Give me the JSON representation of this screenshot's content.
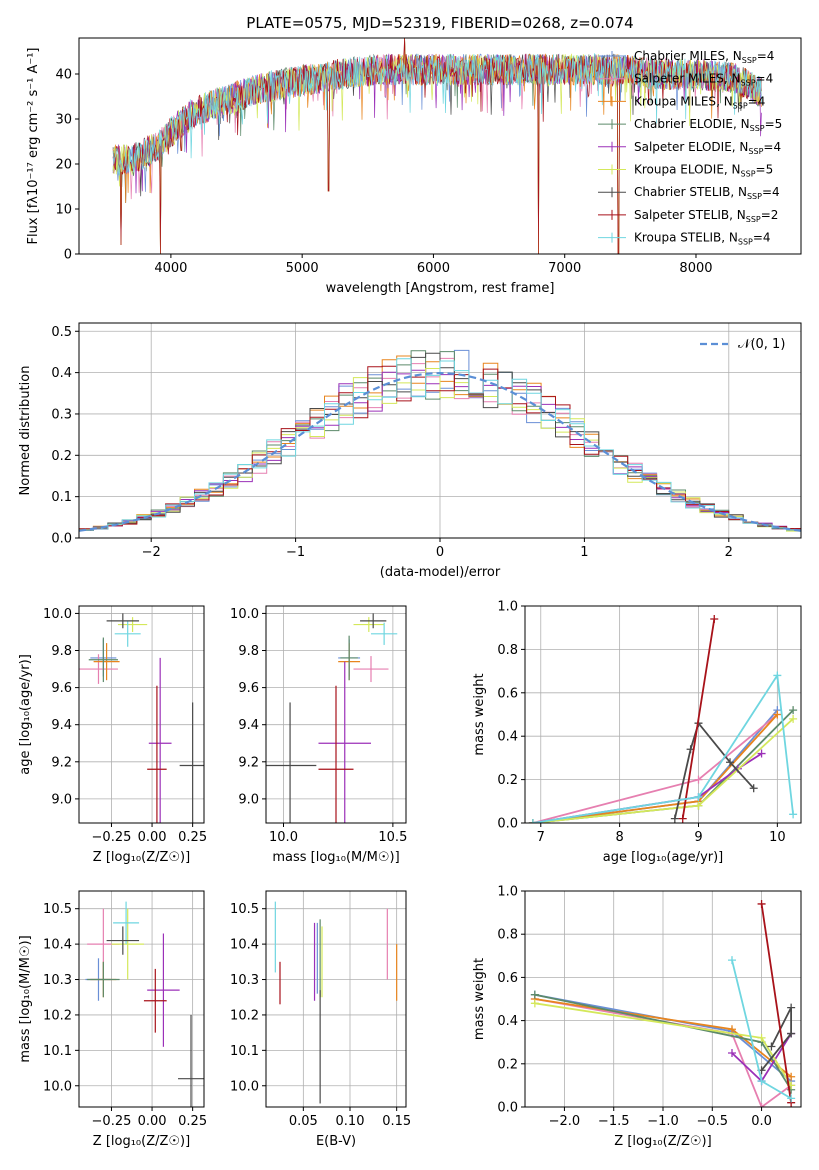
{
  "figure": {
    "title": "PLATE=0575, MJD=52319, FIBERID=0268, z=0.074"
  },
  "models": [
    {
      "name": "Chabrier MILES",
      "nssp": "4",
      "color": "#6a8fd6"
    },
    {
      "name": "Salpeter MILES",
      "nssp": "4",
      "color": "#e67fb0"
    },
    {
      "name": "Kroupa MILES",
      "nssp": "4",
      "color": "#e8851e"
    },
    {
      "name": "Chabrier ELODIE",
      "nssp": "5",
      "color": "#5c8a6a"
    },
    {
      "name": "Salpeter ELODIE",
      "nssp": "4",
      "color": "#9b30b8"
    },
    {
      "name": "Kroupa ELODIE",
      "nssp": "5",
      "color": "#d4e85a"
    },
    {
      "name": "Chabrier STELIB",
      "nssp": "4",
      "color": "#4a4a4a"
    },
    {
      "name": "Salpeter STELIB",
      "nssp": "2",
      "color": "#a8121a"
    },
    {
      "name": "Kroupa STELIB",
      "nssp": "4",
      "color": "#6fd6e0"
    }
  ],
  "chart_data": [
    {
      "id": "spectrum",
      "type": "line",
      "xlabel": "wavelength [Angstrom, rest frame]",
      "ylabel": "Flux [fλ10⁻¹⁷ erg cm⁻² s⁻¹ A⁻¹]",
      "xlim": [
        3300,
        8800
      ],
      "ylim": [
        0,
        48
      ],
      "xticks": [
        "4000",
        "5000",
        "6000",
        "7000",
        "8000"
      ],
      "yticks": [
        "0",
        "10",
        "20",
        "30",
        "40"
      ],
      "legend_position": "right",
      "continuum": {
        "x": [
          3560,
          3700,
          3900,
          4000,
          4150,
          4300,
          4500,
          4700,
          4900,
          5100,
          5300,
          5600,
          5900,
          6200,
          6500,
          6800,
          7100,
          7400,
          7700,
          8000,
          8300,
          8500
        ],
        "y": [
          21,
          21,
          24,
          27,
          31,
          33,
          35,
          37,
          38,
          39,
          40,
          41,
          41,
          41,
          41,
          41,
          41,
          41,
          40,
          40,
          39,
          36
        ]
      },
      "spikes": [
        {
          "x": 3620,
          "y": 2
        },
        {
          "x": 3920,
          "y": 0
        },
        {
          "x": 4080,
          "y": 23
        },
        {
          "x": 5200,
          "y": 14
        },
        {
          "x": 5780,
          "y": 48
        },
        {
          "x": 6800,
          "y": 0
        },
        {
          "x": 7410,
          "y": 0
        }
      ]
    },
    {
      "id": "residuals",
      "type": "histogram",
      "xlabel": "(data-model)/error",
      "ylabel": "Normed distribution",
      "xlim": [
        -2.5,
        2.5
      ],
      "ylim": [
        0,
        0.52
      ],
      "xticks": [
        "−2",
        "−1",
        "0",
        "1",
        "2"
      ],
      "yticks": [
        "0.0",
        "0.1",
        "0.2",
        "0.3",
        "0.4",
        "0.5"
      ],
      "bin_width": 0.1,
      "legend": "𝒩(0, 1)",
      "legend_position": "top-right",
      "grid": true
    },
    {
      "id": "age_vs_Z",
      "type": "errorbar",
      "xlabel": "Z [log₁₀(Z/Z☉)]",
      "ylabel": "age  [log₁₀(age/yr)]",
      "xlim": [
        -0.45,
        0.32
      ],
      "ylim": [
        8.87,
        10.04
      ],
      "xticks": [
        "−0.25",
        "0.00",
        "0.25"
      ],
      "yticks": [
        "9.0",
        "9.2",
        "9.4",
        "9.6",
        "9.8",
        "10.0"
      ],
      "grid": true,
      "points": [
        {
          "m": 0,
          "x": -0.3,
          "xe": 0.08,
          "y": 9.76,
          "ye": 0.1
        },
        {
          "m": 1,
          "x": -0.33,
          "xe": 0.12,
          "y": 9.7,
          "ye": 0.08
        },
        {
          "m": 2,
          "x": -0.28,
          "xe": 0.08,
          "y": 9.74,
          "ye": 0.1
        },
        {
          "m": 3,
          "x": -0.3,
          "xe": 0.09,
          "y": 9.75,
          "ye": 0.12
        },
        {
          "m": 4,
          "x": 0.05,
          "xe": 0.07,
          "y": 9.3,
          "ye": 0.46
        },
        {
          "m": 5,
          "x": -0.12,
          "xe": 0.09,
          "y": 9.94,
          "ye": 0.04
        },
        {
          "m": 6,
          "x": 0.25,
          "xe": 0.08,
          "y": 9.18,
          "ye": 0.34
        },
        {
          "m": 7,
          "x": 0.03,
          "xe": 0.06,
          "y": 9.16,
          "ye": 0.45
        },
        {
          "m": 8,
          "x": -0.15,
          "xe": 0.08,
          "y": 9.89,
          "ye": 0.07
        },
        {
          "m": 6,
          "x": -0.18,
          "xe": 0.1,
          "y": 9.96,
          "ye": 0.04
        }
      ]
    },
    {
      "id": "age_vs_mass",
      "type": "errorbar",
      "xlabel": "mass [log₁₀(M/M☉)]",
      "xlim": [
        9.92,
        10.56
      ],
      "ylim": [
        8.87,
        10.04
      ],
      "xticks": [
        "10.0",
        "10.5"
      ],
      "yticks": [
        "9.0",
        "9.2",
        "9.4",
        "9.6",
        "9.8",
        "10.0"
      ],
      "grid": true,
      "points": [
        {
          "m": 0,
          "x": 10.3,
          "xe": 0.05,
          "y": 9.76,
          "ye": 0.1
        },
        {
          "m": 1,
          "x": 10.4,
          "xe": 0.08,
          "y": 9.7,
          "ye": 0.07
        },
        {
          "m": 2,
          "x": 10.3,
          "xe": 0.05,
          "y": 9.74,
          "ye": 0.1
        },
        {
          "m": 3,
          "x": 10.3,
          "xe": 0.04,
          "y": 9.76,
          "ye": 0.12
        },
        {
          "m": 4,
          "x": 10.28,
          "xe": 0.12,
          "y": 9.3,
          "ye": 0.44
        },
        {
          "m": 5,
          "x": 10.39,
          "xe": 0.07,
          "y": 9.94,
          "ye": 0.04
        },
        {
          "m": 6,
          "x": 10.03,
          "xe": 0.12,
          "y": 9.18,
          "ye": 0.34
        },
        {
          "m": 7,
          "x": 10.24,
          "xe": 0.08,
          "y": 9.16,
          "ye": 0.45
        },
        {
          "m": 8,
          "x": 10.46,
          "xe": 0.06,
          "y": 9.89,
          "ye": 0.06
        },
        {
          "m": 6,
          "x": 10.41,
          "xe": 0.06,
          "y": 9.96,
          "ye": 0.04
        }
      ]
    },
    {
      "id": "weight_vs_age",
      "type": "line",
      "xlabel": "age  [log₁₀(age/yr)]",
      "ylabel": "mass weight",
      "xlim": [
        6.8,
        10.3
      ],
      "ylim": [
        0,
        1
      ],
      "xticks": [
        "7",
        "8",
        "9",
        "10"
      ],
      "yticks": [
        "0.0",
        "0.2",
        "0.4",
        "0.6",
        "0.8",
        "1.0"
      ],
      "grid": true,
      "series": [
        {
          "m": 0,
          "x": [
            6.9,
            9.0,
            10.0
          ],
          "y": [
            0.0,
            0.1,
            0.52
          ]
        },
        {
          "m": 1,
          "x": [
            6.9,
            9.0,
            10.0
          ],
          "y": [
            0.0,
            0.2,
            0.5
          ]
        },
        {
          "m": 2,
          "x": [
            6.9,
            9.0,
            10.0
          ],
          "y": [
            0.0,
            0.1,
            0.5
          ]
        },
        {
          "m": 3,
          "x": [
            6.9,
            9.0,
            10.2
          ],
          "y": [
            0.0,
            0.08,
            0.52
          ]
        },
        {
          "m": 4,
          "x": [
            6.9,
            9.0,
            9.5,
            9.8
          ],
          "y": [
            0.0,
            0.12,
            0.25,
            0.32
          ]
        },
        {
          "m": 5,
          "x": [
            6.9,
            9.0,
            10.2
          ],
          "y": [
            0.0,
            0.08,
            0.48
          ]
        },
        {
          "m": 6,
          "x": [
            8.7,
            8.9,
            9.0,
            9.4,
            9.7
          ],
          "y": [
            0.02,
            0.34,
            0.46,
            0.28,
            0.16
          ]
        },
        {
          "m": 7,
          "x": [
            8.8,
            9.2
          ],
          "y": [
            0.02,
            0.94
          ]
        },
        {
          "m": 8,
          "x": [
            6.9,
            9.0,
            10.0,
            10.2
          ],
          "y": [
            0.0,
            0.12,
            0.68,
            0.04
          ]
        }
      ]
    },
    {
      "id": "mass_vs_Z",
      "type": "errorbar",
      "xlabel": "Z [log₁₀(Z/Z☉)]",
      "ylabel": "mass [log₁₀(M/M☉)]",
      "xlim": [
        -0.45,
        0.32
      ],
      "ylim": [
        9.94,
        10.55
      ],
      "xticks": [
        "−0.25",
        "0.00",
        "0.25"
      ],
      "yticks": [
        "10.0",
        "10.1",
        "10.2",
        "10.3",
        "10.4",
        "10.5"
      ],
      "grid": true,
      "points": [
        {
          "m": 0,
          "x": -0.33,
          "xe": 0.08,
          "y": 10.3,
          "ye": 0.06
        },
        {
          "m": 1,
          "x": -0.3,
          "xe": 0.1,
          "y": 10.4,
          "ye": 0.1
        },
        {
          "m": 2,
          "x": -0.3,
          "xe": 0.08,
          "y": 10.3,
          "ye": 0.05
        },
        {
          "m": 3,
          "x": -0.3,
          "xe": 0.1,
          "y": 10.3,
          "ye": 0.05
        },
        {
          "m": 4,
          "x": 0.07,
          "xe": 0.1,
          "y": 10.27,
          "ye": 0.16
        },
        {
          "m": 5,
          "x": -0.15,
          "xe": 0.1,
          "y": 10.4,
          "ye": 0.1
        },
        {
          "m": 6,
          "x": 0.24,
          "xe": 0.08,
          "y": 10.02,
          "ye": 0.18
        },
        {
          "m": 7,
          "x": 0.02,
          "xe": 0.07,
          "y": 10.24,
          "ye": 0.09
        },
        {
          "m": 8,
          "x": -0.16,
          "xe": 0.08,
          "y": 10.46,
          "ye": 0.06
        },
        {
          "m": 6,
          "x": -0.18,
          "xe": 0.1,
          "y": 10.41,
          "ye": 0.04
        }
      ]
    },
    {
      "id": "mass_vs_ebv",
      "type": "errorbar",
      "xlabel": "E(B-V)",
      "xlim": [
        0.01,
        0.16
      ],
      "ylim": [
        9.94,
        10.55
      ],
      "xticks": [
        "0.05",
        "0.10",
        "0.15"
      ],
      "yticks": [
        "10.0",
        "10.1",
        "10.2",
        "10.3",
        "10.4",
        "10.5"
      ],
      "grid": true,
      "points": [
        {
          "m": 0,
          "x": 0.065,
          "xe": 0,
          "y": 10.36,
          "ye": 0.1
        },
        {
          "m": 1,
          "x": 0.14,
          "xe": 0,
          "y": 10.4,
          "ye": 0.1
        },
        {
          "m": 2,
          "x": 0.15,
          "xe": 0,
          "y": 10.32,
          "ye": 0.08
        },
        {
          "m": 3,
          "x": 0.068,
          "xe": 0,
          "y": 10.36,
          "ye": 0.11
        },
        {
          "m": 4,
          "x": 0.062,
          "xe": 0,
          "y": 10.35,
          "ye": 0.11
        },
        {
          "m": 5,
          "x": 0.07,
          "xe": 0,
          "y": 10.35,
          "ye": 0.1
        },
        {
          "m": 6,
          "x": 0.068,
          "xe": 0,
          "y": 10.11,
          "ye": 0.16
        },
        {
          "m": 7,
          "x": 0.025,
          "xe": 0,
          "y": 10.29,
          "ye": 0.06
        },
        {
          "m": 8,
          "x": 0.02,
          "xe": 0,
          "y": 10.42,
          "ye": 0.1
        }
      ]
    },
    {
      "id": "weight_vs_Z",
      "type": "line",
      "xlabel": "Z [log₁₀(Z/Z☉)]",
      "ylabel": "mass weight",
      "xlim": [
        -2.4,
        0.4
      ],
      "ylim": [
        0,
        1
      ],
      "xticks": [
        "−2.0",
        "−1.5",
        "−1.0",
        "−0.5",
        "0.0"
      ],
      "yticks": [
        "0.0",
        "0.2",
        "0.4",
        "0.6",
        "0.8",
        "1.0"
      ],
      "grid": true,
      "series": [
        {
          "m": 0,
          "x": [
            -2.3,
            -0.3,
            0.3
          ],
          "y": [
            0.52,
            0.35,
            0.12
          ]
        },
        {
          "m": 1,
          "x": [
            -2.3,
            -0.3,
            0.0,
            0.3
          ],
          "y": [
            0.5,
            0.34,
            0.0,
            0.1
          ]
        },
        {
          "m": 2,
          "x": [
            -2.3,
            -0.3,
            0.3
          ],
          "y": [
            0.5,
            0.36,
            0.14
          ]
        },
        {
          "m": 3,
          "x": [
            -2.3,
            0.0,
            0.3
          ],
          "y": [
            0.52,
            0.3,
            0.08
          ]
        },
        {
          "m": 4,
          "x": [
            -0.3,
            0.0,
            0.3
          ],
          "y": [
            0.25,
            0.12,
            0.34
          ]
        },
        {
          "m": 5,
          "x": [
            -2.3,
            0.0,
            0.3
          ],
          "y": [
            0.48,
            0.32,
            0.1
          ]
        },
        {
          "m": 6,
          "x": [
            0.0,
            0.3,
            0.3,
            0.1
          ],
          "y": [
            0.17,
            0.34,
            0.46,
            0.28
          ]
        },
        {
          "m": 7,
          "x": [
            0.0,
            0.3
          ],
          "y": [
            0.94,
            0.02
          ]
        },
        {
          "m": 8,
          "x": [
            -0.3,
            0.0,
            0.3
          ],
          "y": [
            0.68,
            0.12,
            0.04
          ]
        }
      ]
    }
  ]
}
